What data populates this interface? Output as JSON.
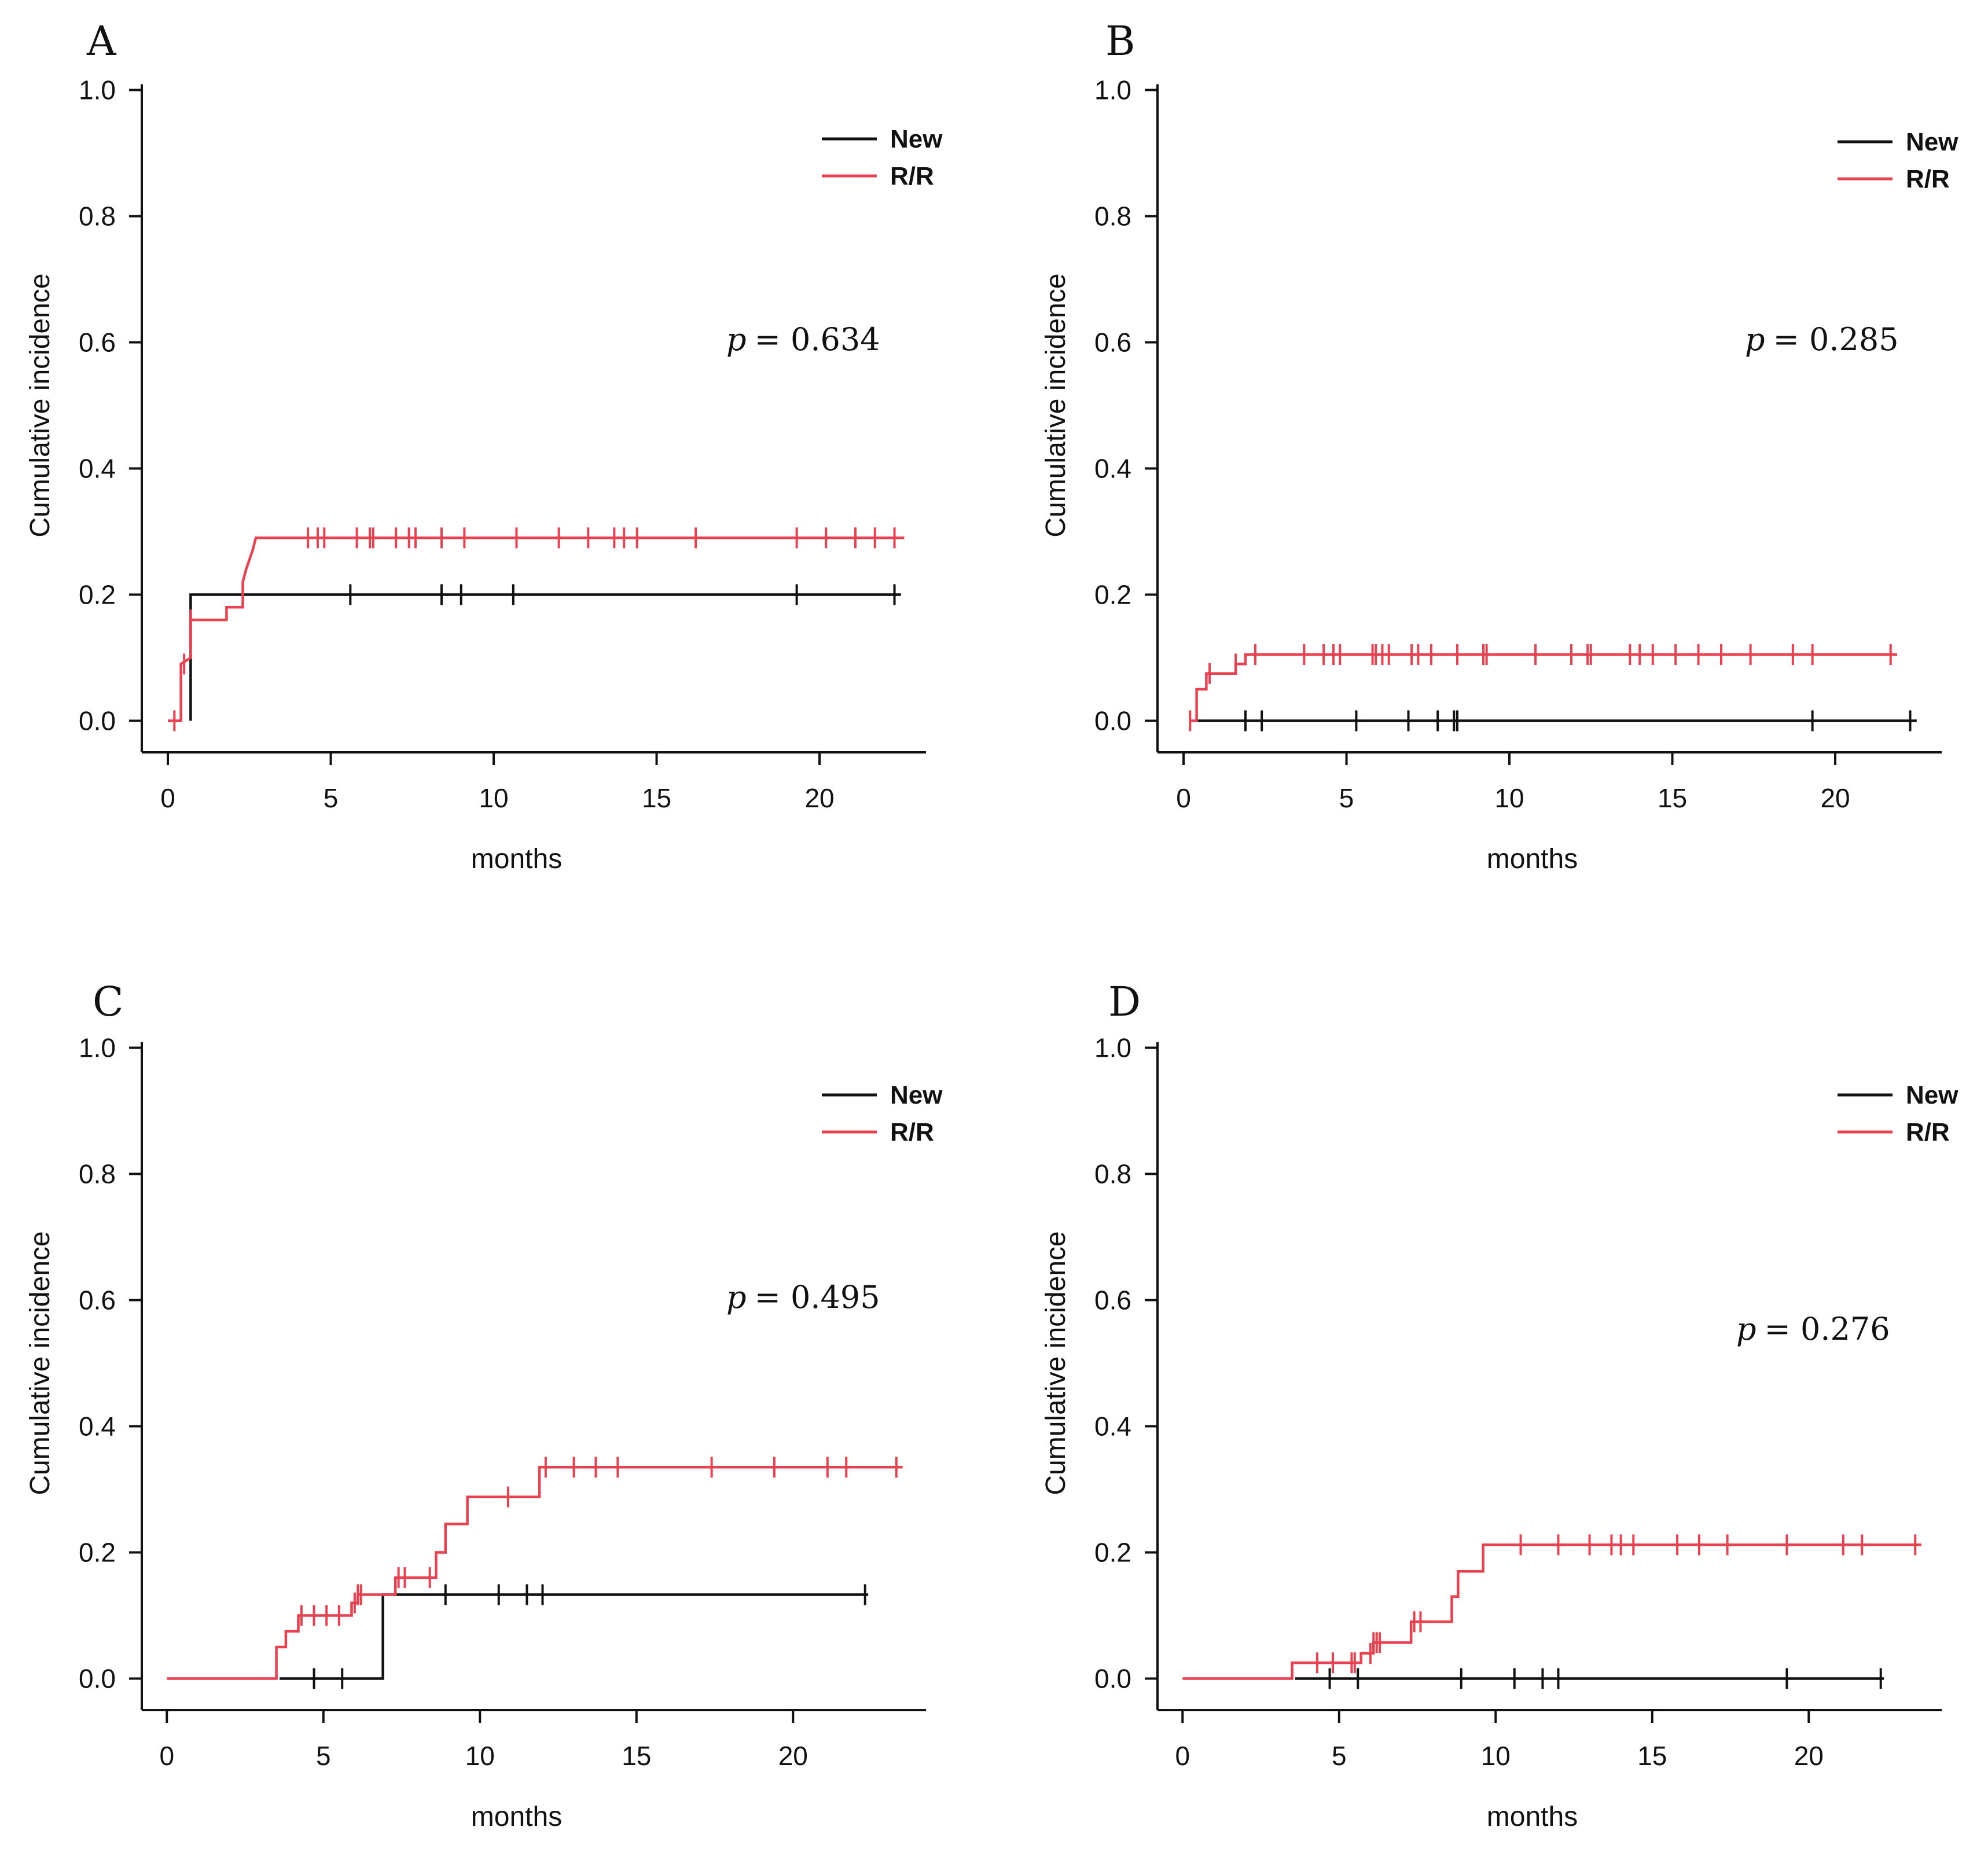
{
  "chart_data": [
    {
      "type": "line",
      "panel": "A",
      "xlabel": "months",
      "ylabel": "Cumulative incidence",
      "xlim": [
        -0.8,
        23.2
      ],
      "ylim": [
        -0.05,
        1.05
      ],
      "xticks": [
        "0",
        "5",
        "10",
        "15",
        "20"
      ],
      "yticks": [
        "0.0",
        "0.2",
        "0.4",
        "0.6",
        "0.8",
        "1.0"
      ],
      "legend": {
        "position": "top-right",
        "entries": [
          "New",
          "R/R"
        ]
      },
      "p_label": "p",
      "p_value": "= 0.634",
      "series": [
        {
          "name": "New",
          "color": "#111111",
          "steps": [
            [
              0.7,
              0.0
            ],
            [
              0.7,
              0.2
            ],
            [
              22.5,
              0.2
            ]
          ],
          "censor": [
            2.3,
            5.6,
            8.4,
            9.0,
            10.6,
            19.3,
            22.3
          ]
        },
        {
          "name": "R/R",
          "color": "#e8414f",
          "steps": [
            [
              0.0,
              0.0
            ],
            [
              0.4,
              0.0
            ],
            [
              0.4,
              0.09
            ],
            [
              0.7,
              0.1
            ],
            [
              0.7,
              0.16
            ],
            [
              1.8,
              0.16
            ],
            [
              1.8,
              0.18
            ],
            [
              2.3,
              0.18
            ],
            [
              2.3,
              0.22
            ],
            [
              2.4,
              0.24
            ],
            [
              2.6,
              0.27
            ],
            [
              2.7,
              0.29
            ],
            [
              22.6,
              0.29
            ]
          ],
          "censor": [
            0.2,
            0.5,
            0.7,
            4.3,
            4.6,
            4.8,
            5.8,
            6.2,
            6.3,
            7.0,
            7.4,
            7.6,
            8.4,
            9.1,
            10.7,
            12.0,
            12.9,
            13.7,
            14.0,
            14.4,
            16.2,
            19.3,
            20.2,
            21.1,
            21.7,
            22.3
          ]
        }
      ]
    },
    {
      "type": "line",
      "panel": "B",
      "xlabel": "months",
      "ylabel": "Cumulative incidence",
      "xlim": [
        -0.8,
        23.2
      ],
      "ylim": [
        -0.05,
        1.05
      ],
      "xticks": [
        "0",
        "5",
        "10",
        "15",
        "20"
      ],
      "yticks": [
        "0.0",
        "0.2",
        "0.4",
        "0.6",
        "0.8",
        "1.0"
      ],
      "legend": {
        "position": "top-right",
        "entries": [
          "New",
          "R/R"
        ]
      },
      "p_label": "p",
      "p_value": "= 0.285",
      "series": [
        {
          "name": "New",
          "color": "#111111",
          "steps": [
            [
              0.4,
              0.0
            ],
            [
              22.5,
              0.0
            ]
          ],
          "censor": [
            1.9,
            2.4,
            5.3,
            6.9,
            7.8,
            8.3,
            8.4,
            19.3,
            22.3
          ]
        },
        {
          "name": "R/R",
          "color": "#e8414f",
          "steps": [
            [
              0.2,
              0.0
            ],
            [
              0.4,
              0.0
            ],
            [
              0.4,
              0.05
            ],
            [
              0.7,
              0.05
            ],
            [
              0.7,
              0.075
            ],
            [
              1.6,
              0.075
            ],
            [
              1.6,
              0.09
            ],
            [
              1.9,
              0.09
            ],
            [
              1.9,
              0.105
            ],
            [
              21.9,
              0.105
            ]
          ],
          "censor": [
            0.2,
            0.8,
            1.6,
            2.2,
            3.7,
            4.3,
            4.6,
            4.8,
            5.8,
            5.9,
            6.1,
            6.3,
            7.0,
            7.2,
            7.6,
            8.4,
            9.2,
            9.3,
            10.8,
            11.9,
            12.4,
            12.5,
            13.7,
            14.0,
            14.4,
            15.1,
            15.8,
            16.5,
            17.4,
            18.7,
            19.3,
            21.7
          ]
        }
      ]
    },
    {
      "type": "line",
      "panel": "C",
      "xlabel": "months",
      "ylabel": "Cumulative incidence",
      "xlim": [
        -0.8,
        24.2
      ],
      "ylim": [
        -0.05,
        1.05
      ],
      "xticks": [
        "0",
        "5",
        "10",
        "15",
        "20"
      ],
      "yticks": [
        "0.0",
        "0.2",
        "0.4",
        "0.6",
        "0.8",
        "1.0"
      ],
      "legend": {
        "position": "top-right",
        "entries": [
          "New",
          "R/R"
        ]
      },
      "p_label": "p",
      "p_value": "= 0.495",
      "series": [
        {
          "name": "New",
          "color": "#111111",
          "steps": [
            [
              3.6,
              0.0
            ],
            [
              6.9,
              0.0
            ],
            [
              6.9,
              0.133
            ],
            [
              22.4,
              0.133
            ]
          ],
          "censor": [
            4.7,
            5.6,
            8.9,
            10.6,
            11.5,
            12.0,
            22.3
          ]
        },
        {
          "name": "R/R",
          "color": "#e8414f",
          "steps": [
            [
              0.0,
              0.0
            ],
            [
              3.5,
              0.0
            ],
            [
              3.5,
              0.05
            ],
            [
              3.8,
              0.05
            ],
            [
              3.8,
              0.075
            ],
            [
              4.2,
              0.075
            ],
            [
              4.2,
              0.1
            ],
            [
              5.9,
              0.1
            ],
            [
              5.9,
              0.12
            ],
            [
              6.1,
              0.12
            ],
            [
              6.1,
              0.133
            ],
            [
              7.3,
              0.133
            ],
            [
              7.3,
              0.16
            ],
            [
              8.6,
              0.16
            ],
            [
              8.6,
              0.2
            ],
            [
              8.9,
              0.2
            ],
            [
              8.9,
              0.245
            ],
            [
              9.6,
              0.245
            ],
            [
              9.6,
              0.288
            ],
            [
              11.9,
              0.288
            ],
            [
              11.9,
              0.335
            ],
            [
              23.5,
              0.335
            ]
          ],
          "censor": [
            4.3,
            4.7,
            5.1,
            5.5,
            6.0,
            6.1,
            6.2,
            7.4,
            7.6,
            8.4,
            10.9,
            12.1,
            13.0,
            13.7,
            14.4,
            17.4,
            19.4,
            21.1,
            21.7,
            23.3
          ]
        }
      ]
    },
    {
      "type": "line",
      "panel": "D",
      "xlabel": "months",
      "ylabel": "Cumulative incidence",
      "xlim": [
        -0.8,
        24.2
      ],
      "ylim": [
        -0.05,
        1.05
      ],
      "xticks": [
        "0",
        "5",
        "10",
        "15",
        "20"
      ],
      "yticks": [
        "0.0",
        "0.2",
        "0.4",
        "0.6",
        "0.8",
        "1.0"
      ],
      "legend": {
        "position": "top-right",
        "entries": [
          "New",
          "R/R"
        ]
      },
      "p_label": "p",
      "p_value": "= 0.276",
      "series": [
        {
          "name": "New",
          "color": "#111111",
          "steps": [
            [
              3.6,
              0.0
            ],
            [
              22.4,
              0.0
            ]
          ],
          "censor": [
            4.7,
            5.6,
            8.9,
            10.6,
            11.5,
            12.0,
            19.3,
            22.3
          ]
        },
        {
          "name": "R/R",
          "color": "#e8414f",
          "steps": [
            [
              0.0,
              0.0
            ],
            [
              3.5,
              0.0
            ],
            [
              3.5,
              0.025
            ],
            [
              5.7,
              0.025
            ],
            [
              5.7,
              0.04
            ],
            [
              6.1,
              0.04
            ],
            [
              6.1,
              0.057
            ],
            [
              7.3,
              0.057
            ],
            [
              7.3,
              0.09
            ],
            [
              8.6,
              0.09
            ],
            [
              8.6,
              0.13
            ],
            [
              8.8,
              0.13
            ],
            [
              8.8,
              0.17
            ],
            [
              9.6,
              0.17
            ],
            [
              9.6,
              0.212
            ],
            [
              23.6,
              0.212
            ]
          ],
          "censor": [
            4.3,
            4.8,
            5.4,
            5.5,
            6.0,
            6.1,
            6.2,
            6.3,
            7.4,
            7.6,
            10.8,
            12.0,
            13.0,
            13.7,
            14.0,
            14.4,
            15.8,
            16.5,
            17.4,
            19.3,
            21.1,
            21.7,
            23.4
          ]
        }
      ]
    }
  ]
}
